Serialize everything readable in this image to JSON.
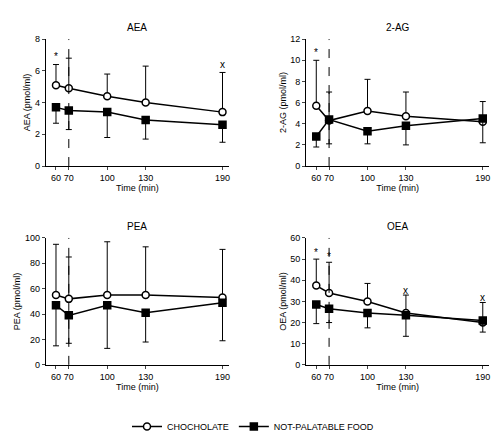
{
  "chart_data": [
    {
      "type": "line",
      "title": "AEA",
      "x_label": "Time (min)",
      "y_label": "AEA (pmol/ml)",
      "xlim": [
        52,
        195
      ],
      "xticks": [
        60,
        70,
        100,
        130,
        190
      ],
      "ylim": [
        0,
        8
      ],
      "yticks": [
        0,
        2,
        4,
        6,
        8
      ],
      "vline": 70,
      "line_style": "dashed",
      "legend": "bottom",
      "series": [
        {
          "name": "CHOCHOLATE",
          "color": "#000000",
          "marker": "circle_open",
          "x": [
            60,
            70,
            100,
            130,
            190
          ],
          "values": [
            5.1,
            4.9,
            4.4,
            4.0,
            3.4
          ],
          "error_plus": [
            1.3,
            1.9,
            1.4,
            2.3,
            2.5
          ]
        },
        {
          "name": "NOT-PALATABLE FOOD",
          "color": "#000000",
          "marker": "square",
          "x": [
            60,
            70,
            100,
            130,
            190
          ],
          "values": [
            3.7,
            3.5,
            3.4,
            2.9,
            2.6
          ],
          "error_minus": [
            1.0,
            1.2,
            1.6,
            1.2,
            1.1
          ]
        }
      ],
      "annotations": [
        {
          "x": 60,
          "y": 6.9,
          "text": "*"
        },
        {
          "x": 190,
          "y": 6.4,
          "text": "x"
        }
      ]
    },
    {
      "type": "line",
      "title": "2-AG",
      "x_label": "Time (min)",
      "y_label": "2-AG (pmol/ml)",
      "xlim": [
        52,
        195
      ],
      "xticks": [
        60,
        70,
        100,
        130,
        190
      ],
      "ylim": [
        0,
        12
      ],
      "yticks": [
        0,
        2,
        4,
        6,
        8,
        10,
        12
      ],
      "vline": 70,
      "line_style": "dashed",
      "series": [
        {
          "name": "CHOCHOLATE",
          "color": "#000000",
          "marker": "circle_open",
          "x": [
            60,
            70,
            100,
            130,
            190
          ],
          "values": [
            5.7,
            4.3,
            5.2,
            4.7,
            4.2
          ],
          "error_plus": [
            4.3,
            2.7,
            3.0,
            2.3,
            1.9
          ]
        },
        {
          "name": "NOT-PALATABLE FOOD",
          "color": "#000000",
          "marker": "square",
          "x": [
            60,
            70,
            100,
            130,
            190
          ],
          "values": [
            2.8,
            4.4,
            3.3,
            3.8,
            4.5
          ],
          "error_minus": [
            1.0,
            2.3,
            1.2,
            1.8,
            2.3
          ]
        }
      ],
      "annotations": [
        {
          "x": 60,
          "y": 10.7,
          "text": "*"
        }
      ]
    },
    {
      "type": "line",
      "title": "PEA",
      "x_label": "Time (min)",
      "y_label": "PEA (pmol/ml)",
      "xlim": [
        52,
        195
      ],
      "xticks": [
        60,
        70,
        100,
        130,
        190
      ],
      "ylim": [
        0,
        100
      ],
      "yticks": [
        0,
        20,
        40,
        60,
        80,
        100
      ],
      "vline": 70,
      "line_style": "dashed",
      "series": [
        {
          "name": "CHOCHOLATE",
          "color": "#000000",
          "marker": "circle_open",
          "x": [
            60,
            70,
            100,
            130,
            190
          ],
          "values": [
            55,
            52,
            55,
            55,
            53
          ],
          "error_plus": [
            40,
            33,
            42,
            38,
            38
          ]
        },
        {
          "name": "NOT-PALATABLE FOOD",
          "color": "#000000",
          "marker": "square",
          "x": [
            60,
            70,
            100,
            130,
            190
          ],
          "values": [
            47,
            39,
            47,
            41,
            49
          ],
          "error_minus": [
            32,
            22,
            34,
            23,
            30
          ]
        }
      ],
      "annotations": []
    },
    {
      "type": "line",
      "title": "OEA",
      "x_label": "Time (min)",
      "y_label": "OEA (pmol/ml)",
      "xlim": [
        52,
        195
      ],
      "xticks": [
        60,
        70,
        100,
        130,
        190
      ],
      "ylim": [
        0,
        60
      ],
      "yticks": [
        0,
        10,
        20,
        30,
        40,
        50,
        60
      ],
      "vline": 70,
      "line_style": "dashed",
      "series": [
        {
          "name": "CHOCHOLATE",
          "color": "#000000",
          "marker": "circle_open",
          "x": [
            60,
            70,
            100,
            130,
            190
          ],
          "values": [
            37.5,
            34,
            30,
            24.5,
            20
          ],
          "error_plus": [
            12.5,
            14.5,
            8.5,
            8.5,
            9.5
          ]
        },
        {
          "name": "NOT-PALATABLE FOOD",
          "color": "#000000",
          "marker": "square",
          "x": [
            60,
            70,
            100,
            130,
            190
          ],
          "values": [
            28.5,
            26.5,
            24.5,
            23.5,
            21
          ],
          "error_minus": [
            9,
            6.5,
            7,
            10,
            5.5
          ]
        }
      ],
      "annotations": [
        {
          "x": 60,
          "y": 53,
          "text": "*"
        },
        {
          "x": 70,
          "y": 51,
          "text": "*"
        },
        {
          "x": 130,
          "y": 35,
          "text": "x"
        },
        {
          "x": 190,
          "y": 32,
          "text": "x"
        }
      ]
    }
  ]
}
